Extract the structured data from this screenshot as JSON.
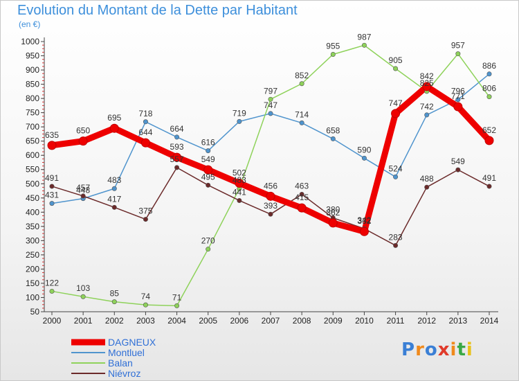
{
  "title": "Evolution du Montant de la Dette par Habitant",
  "unit_label": "(en €)",
  "logo": {
    "text": "Proxiti",
    "colors": [
      "#3a7fd5",
      "#f08a1c",
      "#3a7fd5",
      "#e03a2a",
      "#f08a1c",
      "#39a845",
      "#e8c21a"
    ]
  },
  "chart_data": {
    "type": "line",
    "x": [
      2000,
      2001,
      2002,
      2003,
      2004,
      2005,
      2006,
      2007,
      2008,
      2009,
      2010,
      2011,
      2012,
      2013,
      2014
    ],
    "ylim": [
      50,
      1000
    ],
    "yticks": [
      50,
      100,
      150,
      200,
      250,
      300,
      350,
      400,
      450,
      500,
      550,
      600,
      650,
      700,
      750,
      800,
      850,
      900,
      950,
      1000
    ],
    "grid": false,
    "legend_position": "bottom-left",
    "series": [
      {
        "name": "Montluel",
        "color": "#4f94cd",
        "width": 1.5,
        "values": [
          431,
          448,
          483,
          718,
          664,
          616,
          719,
          747,
          714,
          658,
          590,
          524,
          742,
          796,
          886
        ]
      },
      {
        "name": "Balan",
        "color": "#8ed25a",
        "width": 1.5,
        "values": [
          122,
          103,
          85,
          74,
          71,
          270,
          483,
          797,
          852,
          955,
          987,
          905,
          825,
          957,
          806
        ]
      },
      {
        "name": "Niévroz",
        "color": "#6b2a2a",
        "width": 1.5,
        "values": [
          491,
          457,
          417,
          375,
          557,
          495,
          441,
          393,
          463,
          380,
          342,
          283,
          488,
          549,
          491
        ]
      },
      {
        "name": "DAGNEUX",
        "color": "#ee0000",
        "width": 9,
        "values": [
          635,
          650,
          695,
          644,
          593,
          549,
          502,
          456,
          415,
          362,
          332,
          747,
          842,
          771,
          652
        ]
      }
    ]
  }
}
